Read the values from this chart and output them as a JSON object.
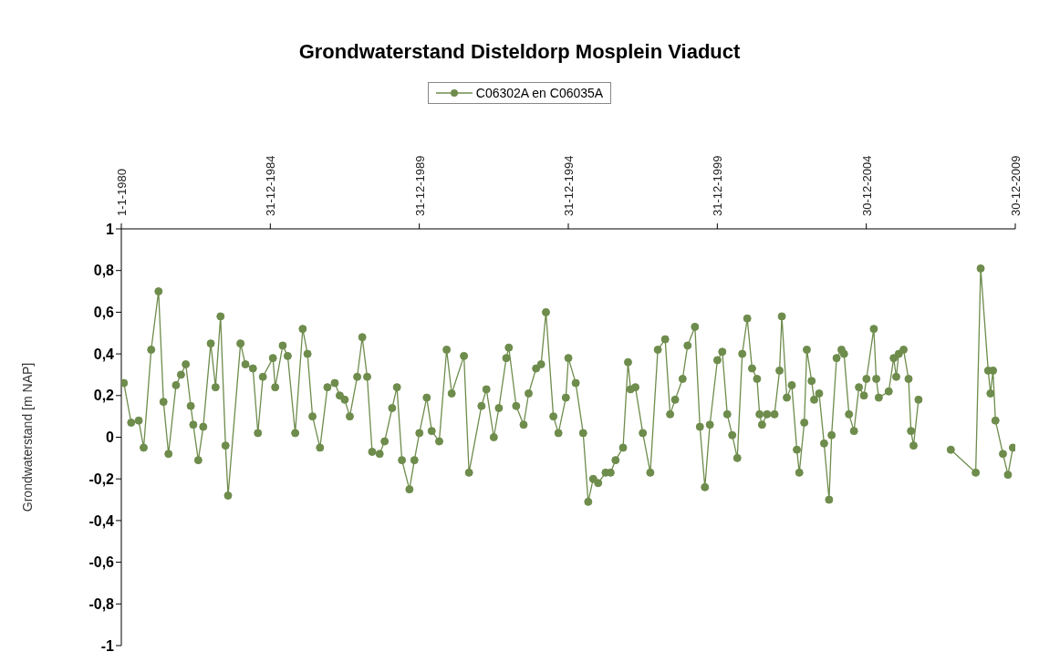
{
  "chart_data": {
    "type": "line",
    "title": "Grondwaterstand Disteldorp Mosplein Viaduct",
    "ylabel": "Grondwaterstand [m NAP]",
    "legend": "top",
    "marker": "circle",
    "line_style": "solid",
    "x": [
      "1980-02",
      "1980-05",
      "1980-08",
      "1980-10",
      "1981-01",
      "1981-04",
      "1981-06",
      "1981-08",
      "1981-11",
      "1982-01",
      "1982-03",
      "1982-05",
      "1982-06",
      "1982-08",
      "1982-10",
      "1983-01",
      "1983-03",
      "1983-05",
      "1983-07",
      "1983-08",
      "1984-01",
      "1984-03",
      "1984-06",
      "1984-08",
      "1984-10",
      "1985-02",
      "1985-03",
      "1985-06",
      "1985-08",
      "1985-11",
      "1986-02",
      "1986-04",
      "1986-06",
      "1986-09",
      "1986-12",
      "1987-03",
      "1987-05",
      "1987-07",
      "1987-09",
      "1987-12",
      "1988-02",
      "1988-04",
      "1988-06",
      "1988-09",
      "1988-11",
      "1989-02",
      "1989-04",
      "1989-06",
      "1989-09",
      "1989-11",
      "1990-01",
      "1990-04",
      "1990-06",
      "1990-09",
      "1990-12",
      "1991-02",
      "1991-07",
      "1991-09",
      "1992-02",
      "1992-04",
      "1992-07",
      "1992-09",
      "1992-12",
      "1993-01",
      "1993-04",
      "1993-07",
      "1993-09",
      "1993-12",
      "1994-02",
      "1994-04",
      "1994-07",
      "1994-09",
      "1994-12",
      "1995-01",
      "1995-04",
      "1995-07",
      "1995-09",
      "1995-11",
      "1996-01",
      "1996-04",
      "1996-06",
      "1996-08",
      "1996-11",
      "1997-01",
      "1997-02",
      "1997-04",
      "1997-07",
      "1997-10",
      "1998-01",
      "1998-04",
      "1998-06",
      "1998-08",
      "1998-11",
      "1999-01",
      "1999-04",
      "1999-06",
      "1999-08",
      "1999-10",
      "2000-01",
      "2000-03",
      "2000-05",
      "2000-07",
      "2000-09",
      "2000-11",
      "2001-01",
      "2001-03",
      "2001-05",
      "2001-06",
      "2001-07",
      "2001-09",
      "2001-12",
      "2002-02",
      "2002-03",
      "2002-05",
      "2002-07",
      "2002-09",
      "2002-10",
      "2002-12",
      "2003-01",
      "2003-03",
      "2003-04",
      "2003-06",
      "2003-08",
      "2003-10",
      "2003-11",
      "2004-01",
      "2004-03",
      "2004-04",
      "2004-06",
      "2004-08",
      "2004-10",
      "2004-12",
      "2005-01",
      "2005-04",
      "2005-05",
      "2005-06",
      "2005-10",
      "2005-12",
      "2006-01",
      "2006-02",
      "2006-04",
      "2006-06",
      "2006-07",
      "2006-08",
      "2006-10",
      "2007-06",
      "2007-11",
      "2008-09",
      "2008-11",
      "2009-02",
      "2009-03",
      "2009-04",
      "2009-05",
      "2009-08",
      "2009-10",
      "2009-12"
    ],
    "series": [
      {
        "name": "C06302A en C06035A",
        "color": "#6e8c4c",
        "values": [
          0.26,
          0.07,
          0.08,
          -0.05,
          0.42,
          0.7,
          0.17,
          -0.08,
          0.25,
          0.3,
          0.35,
          0.15,
          0.06,
          -0.11,
          0.05,
          0.45,
          0.24,
          0.58,
          -0.04,
          -0.28,
          0.45,
          0.35,
          0.33,
          0.02,
          0.29,
          0.38,
          0.24,
          0.44,
          0.39,
          0.02,
          0.52,
          0.4,
          0.1,
          -0.05,
          0.24,
          0.26,
          0.2,
          0.18,
          0.1,
          0.29,
          0.48,
          0.29,
          -0.07,
          -0.08,
          -0.02,
          0.14,
          0.24,
          -0.11,
          -0.25,
          -0.11,
          0.02,
          0.19,
          0.03,
          -0.02,
          0.42,
          0.21,
          0.39,
          -0.17,
          0.15,
          0.23,
          0.0,
          0.14,
          0.38,
          0.43,
          0.15,
          0.06,
          0.21,
          0.33,
          0.35,
          0.6,
          0.1,
          0.02,
          0.19,
          0.38,
          0.26,
          0.02,
          -0.31,
          -0.2,
          -0.22,
          -0.17,
          -0.17,
          -0.11,
          -0.05,
          0.36,
          0.23,
          0.24,
          0.02,
          -0.17,
          0.42,
          0.47,
          0.11,
          0.18,
          0.28,
          0.44,
          0.53,
          0.05,
          -0.24,
          0.06,
          0.37,
          0.41,
          0.11,
          0.01,
          -0.1,
          0.4,
          0.57,
          0.33,
          0.28,
          0.11,
          0.06,
          0.11,
          0.11,
          0.32,
          0.58,
          0.19,
          0.25,
          -0.06,
          -0.17,
          0.07,
          0.42,
          0.27,
          0.18,
          0.21,
          -0.03,
          -0.3,
          0.01,
          0.38,
          0.42,
          0.4,
          0.11,
          0.03,
          0.24,
          0.2,
          0.28,
          0.52,
          0.28,
          0.19,
          0.22,
          0.38,
          0.29,
          0.4,
          0.42,
          0.28,
          0.03,
          -0.04,
          0.18,
          null,
          -0.06,
          -0.17,
          0.81,
          0.32,
          0.21,
          0.32,
          0.08,
          -0.08,
          -0.18,
          -0.05
        ]
      }
    ],
    "xlim": [
      "1980-01-01",
      "2009-12-30"
    ],
    "xticks": [
      {
        "value": "1980-01-01",
        "label": "1-1-1980"
      },
      {
        "value": "1984-12-31",
        "label": "31-12-1984"
      },
      {
        "value": "1989-12-31",
        "label": "31-12-1989"
      },
      {
        "value": "1994-12-31",
        "label": "31-12-1994"
      },
      {
        "value": "1999-12-31",
        "label": "31-12-1999"
      },
      {
        "value": "2004-12-30",
        "label": "30-12-2004"
      },
      {
        "value": "2009-12-30",
        "label": "30-12-2009"
      }
    ],
    "ylim": [
      -1,
      1
    ],
    "yticks": [
      {
        "value": -1,
        "label": "-1"
      },
      {
        "value": -0.8,
        "label": "-0,8"
      },
      {
        "value": -0.6,
        "label": "-0,6"
      },
      {
        "value": -0.4,
        "label": "-0,4"
      },
      {
        "value": -0.2,
        "label": "-0,2"
      },
      {
        "value": 0,
        "label": "0"
      },
      {
        "value": 0.2,
        "label": "0,2"
      },
      {
        "value": 0.4,
        "label": "0,4"
      },
      {
        "value": 0.6,
        "label": "0,6"
      },
      {
        "value": 0.8,
        "label": "0,8"
      },
      {
        "value": 1,
        "label": "1"
      }
    ]
  }
}
